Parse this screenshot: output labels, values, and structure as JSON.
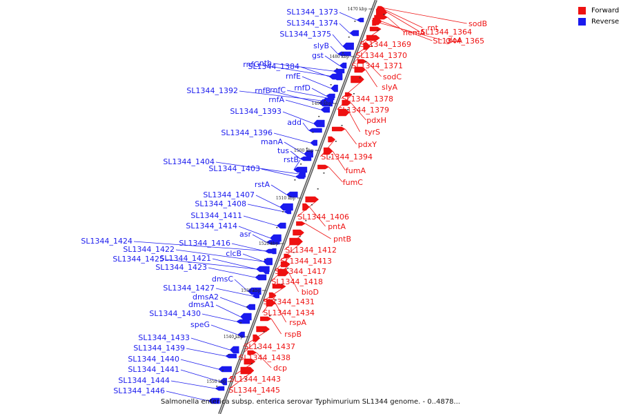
{
  "caption": "Salmonella enterica subsp. enterica serovar Typhimurium SL1344 genome. - 0..4878...",
  "legend": {
    "forward": {
      "label": "Forward",
      "color": "#ee1111"
    },
    "reverse": {
      "label": "Reverse",
      "color": "#1a1aee"
    }
  },
  "ticks": [
    "1470 kbp",
    "1480 kbp",
    "1490 kbp",
    "1500 kbp",
    "1510 kbp",
    "1520 kbp",
    "1530 kbp",
    "1540 kbp",
    "1550 kbp"
  ],
  "reverse_labels": [
    "SL1344_1373",
    "SL1344_1374",
    "SL1344_1375",
    "slyB",
    "gst",
    "rnfG",
    "nth",
    "SL1344_1384",
    "rnfE",
    "rnfD",
    "SL1344_1392",
    "rnfB",
    "rnfC",
    "rnfA",
    "SL1344_1393",
    "add",
    "SL1344_1396",
    "manA",
    "tus",
    "rstB",
    "SL1344_1404",
    "SL1344_1403",
    "rstA",
    "SL1344_1407",
    "SL1344_1408",
    "SL1344_1411",
    "SL1344_1414",
    "asr",
    "SL1344_1424",
    "SL1344_1422",
    "SL1344_1416",
    "SL1344_1425",
    "SL1344_1421",
    "clcB",
    "SL1344_1423",
    "dmsC",
    "SL1344_1427",
    "dmsA2",
    "dmsA1",
    "SL1344_1430",
    "speG",
    "SL1344_1433",
    "SL1344_1439",
    "SL1344_1440",
    "SL1344_1441",
    "SL1344_1444",
    "SL1344_1446"
  ],
  "forward_labels": [
    "sodB",
    "rnt",
    "SL1344_1364",
    "nemA",
    "gloA",
    "SL1344_1365",
    "SL1344_1369",
    "SL1344_1370",
    "SL1344_1371",
    "sodC",
    "slyA",
    "SL1344_1378",
    "SL1344_1379",
    "pdxH",
    "tyrS",
    "pdxY",
    "SL1344_1394",
    "fumA",
    "fumC",
    "SL1344_1406",
    "pntA",
    "pntB",
    "SL1344_1412",
    "SL1344_1413",
    "SL1344_1417",
    "SL1344_1418",
    "bioD",
    "SL1344_1431",
    "SL1344_1434",
    "rspA",
    "rspB",
    "SL1344_1437",
    "SL1344_1438",
    "dcp",
    "SL1344_1443",
    "SL1344_1445"
  ]
}
